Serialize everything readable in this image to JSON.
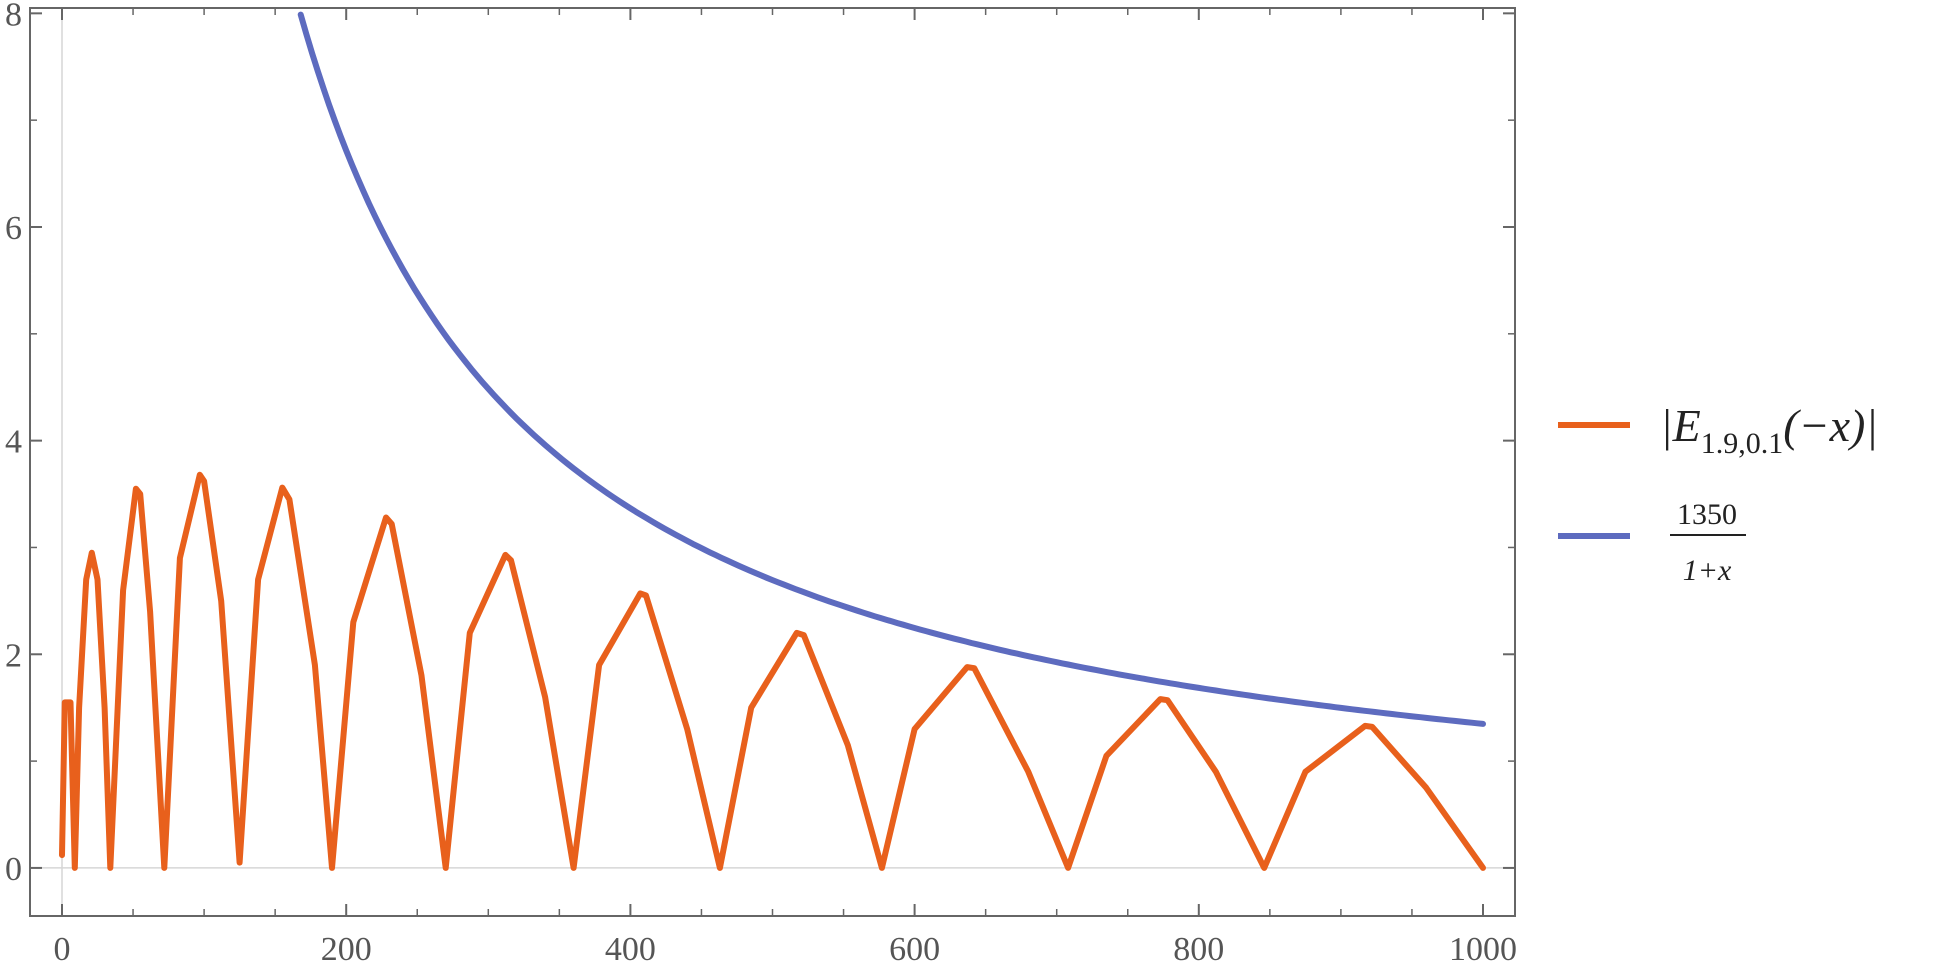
{
  "chart_data": {
    "type": "line",
    "title": "",
    "xlabel": "",
    "ylabel": "",
    "xlim": [
      0,
      1000
    ],
    "ylim": [
      -0.45,
      8.05
    ],
    "grid": false,
    "legend_position": "right",
    "x_ticks": [
      {
        "value": 0,
        "label": "0"
      },
      {
        "value": 200,
        "label": "200"
      },
      {
        "value": 400,
        "label": "400"
      },
      {
        "value": 600,
        "label": "600"
      },
      {
        "value": 800,
        "label": "800"
      },
      {
        "value": 1000,
        "label": "1000"
      }
    ],
    "y_ticks": [
      {
        "value": 0,
        "label": "0"
      },
      {
        "value": 2,
        "label": "2"
      },
      {
        "value": 4,
        "label": "4"
      },
      {
        "value": 6,
        "label": "6"
      },
      {
        "value": 8,
        "label": "8"
      }
    ],
    "series": [
      {
        "name": "|E1.9,0.1(−x)|",
        "color": "#E8601C",
        "points": [
          [
            0,
            0.12
          ],
          [
            2,
            1.55
          ],
          [
            6,
            1.55
          ],
          [
            9,
            0
          ],
          [
            12,
            1.5
          ],
          [
            17,
            2.7
          ],
          [
            21,
            2.95
          ],
          [
            25,
            2.7
          ],
          [
            30,
            1.5
          ],
          [
            34,
            0
          ],
          [
            43,
            2.6
          ],
          [
            52,
            3.55
          ],
          [
            55,
            3.5
          ],
          [
            62,
            2.4
          ],
          [
            72,
            0
          ],
          [
            83,
            2.9
          ],
          [
            97,
            3.68
          ],
          [
            100,
            3.62
          ],
          [
            112,
            2.5
          ],
          [
            125,
            0.05
          ],
          [
            138,
            2.7
          ],
          [
            155,
            3.56
          ],
          [
            160,
            3.45
          ],
          [
            178,
            1.9
          ],
          [
            190,
            0
          ],
          [
            205,
            2.3
          ],
          [
            228,
            3.28
          ],
          [
            232,
            3.22
          ],
          [
            253,
            1.8
          ],
          [
            270,
            0
          ],
          [
            287,
            2.2
          ],
          [
            312,
            2.93
          ],
          [
            316,
            2.88
          ],
          [
            340,
            1.6
          ],
          [
            360,
            0
          ],
          [
            378,
            1.9
          ],
          [
            407,
            2.57
          ],
          [
            411,
            2.55
          ],
          [
            440,
            1.3
          ],
          [
            463,
            0
          ],
          [
            485,
            1.5
          ],
          [
            517,
            2.2
          ],
          [
            522,
            2.18
          ],
          [
            553,
            1.15
          ],
          [
            577,
            0
          ],
          [
            600,
            1.3
          ],
          [
            637,
            1.88
          ],
          [
            642,
            1.87
          ],
          [
            680,
            0.9
          ],
          [
            708,
            0
          ],
          [
            735,
            1.05
          ],
          [
            773,
            1.58
          ],
          [
            778,
            1.57
          ],
          [
            812,
            0.9
          ],
          [
            846,
            0
          ],
          [
            875,
            0.9
          ],
          [
            917,
            1.33
          ],
          [
            922,
            1.32
          ],
          [
            960,
            0.75
          ],
          [
            1000,
            0
          ]
        ]
      },
      {
        "name": "1350/(1+x)",
        "color": "#5D6BBF",
        "function": "1350/(1+x)",
        "x_start": 168,
        "x_end": 1000
      }
    ]
  },
  "legend": [
    {
      "color": "#E8601C",
      "kind": "orange",
      "main": "|E",
      "sub": "1.9,0.1",
      "tail": "(−x)|"
    },
    {
      "color": "#5D6BBF",
      "kind": "blue",
      "numerator": "1350",
      "denominator": "1+x"
    }
  ]
}
